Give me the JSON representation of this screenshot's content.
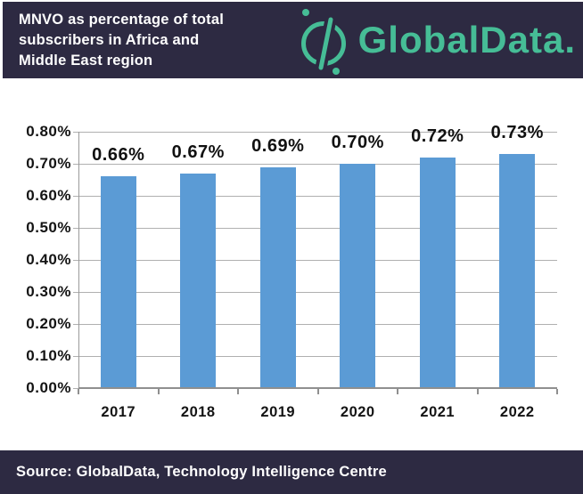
{
  "header": {
    "title_lines": [
      "MNVO as percentage of total",
      "subscribers in Africa and",
      "Middle East region"
    ],
    "logo_text": "GlobalData.",
    "bg_color": "#2d2a42",
    "logo_color": "#46bd96"
  },
  "footer": {
    "source_text": "Source: GlobalData, Technology Intelligence Centre"
  },
  "chart_data": {
    "type": "bar",
    "title": "MNVO as percentage of total subscribers in Africa and Middle East region",
    "categories": [
      "2017",
      "2018",
      "2019",
      "2020",
      "2021",
      "2022"
    ],
    "values": [
      0.66,
      0.67,
      0.69,
      0.7,
      0.72,
      0.73
    ],
    "data_labels": [
      "0.66%",
      "0.67%",
      "0.69%",
      "0.70%",
      "0.72%",
      "0.73%"
    ],
    "unit": "%",
    "xlabel": "",
    "ylabel": "",
    "ylim": [
      0,
      0.8
    ],
    "y_ticks": [
      "0.80%",
      "0.70%",
      "0.60%",
      "0.50%",
      "0.40%",
      "0.30%",
      "0.20%",
      "0.10%",
      "0.00%"
    ],
    "grid": true,
    "legend": false,
    "bar_color": "#5b9bd5",
    "gridline_color": "#b0b0b0",
    "axis_color": "#8f8f8f"
  }
}
